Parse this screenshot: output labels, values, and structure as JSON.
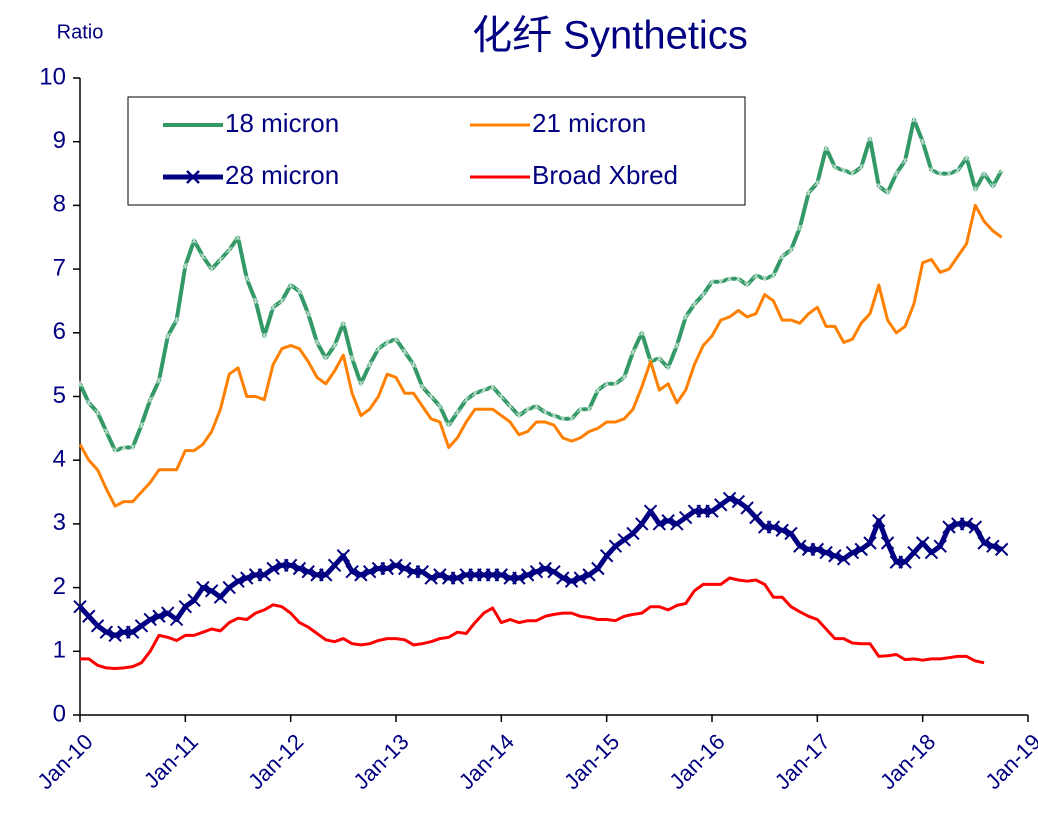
{
  "chart_data": {
    "type": "line",
    "title": "化纤 Synthetics",
    "y_label": "Ratio",
    "x": [
      "2010-01",
      "2010-02",
      "2010-03",
      "2010-04",
      "2010-05",
      "2010-06",
      "2010-07",
      "2010-08",
      "2010-09",
      "2010-10",
      "2010-11",
      "2010-12",
      "2011-01",
      "2011-02",
      "2011-03",
      "2011-04",
      "2011-05",
      "2011-06",
      "2011-07",
      "2011-08",
      "2011-09",
      "2011-10",
      "2011-11",
      "2011-12",
      "2012-01",
      "2012-02",
      "2012-03",
      "2012-04",
      "2012-05",
      "2012-06",
      "2012-07",
      "2012-08",
      "2012-09",
      "2012-10",
      "2012-11",
      "2012-12",
      "2013-01",
      "2013-02",
      "2013-03",
      "2013-04",
      "2013-05",
      "2013-06",
      "2013-07",
      "2013-08",
      "2013-09",
      "2013-10",
      "2013-11",
      "2013-12",
      "2014-01",
      "2014-02",
      "2014-03",
      "2014-04",
      "2014-05",
      "2014-06",
      "2014-07",
      "2014-08",
      "2014-09",
      "2014-10",
      "2014-11",
      "2014-12",
      "2015-01",
      "2015-02",
      "2015-03",
      "2015-04",
      "2015-05",
      "2015-06",
      "2015-07",
      "2015-08",
      "2015-09",
      "2015-10",
      "2015-11",
      "2015-12",
      "2016-01",
      "2016-02",
      "2016-03",
      "2016-04",
      "2016-05",
      "2016-06",
      "2016-07",
      "2016-08",
      "2016-09",
      "2016-10",
      "2016-11",
      "2016-12",
      "2017-01",
      "2017-02",
      "2017-03",
      "2017-04",
      "2017-05",
      "2017-06",
      "2017-07",
      "2017-08",
      "2017-09",
      "2017-10",
      "2017-11",
      "2017-12",
      "2018-01",
      "2018-02",
      "2018-03",
      "2018-04",
      "2018-05",
      "2018-06",
      "2018-07",
      "2018-08",
      "2018-09",
      "2018-10"
    ],
    "series": [
      {
        "name": "18 micron",
        "color": "#339966",
        "marker": "star",
        "values": [
          5.2,
          4.9,
          4.75,
          4.45,
          4.15,
          4.2,
          4.2,
          4.55,
          4.95,
          5.25,
          5.95,
          6.2,
          7.05,
          7.45,
          7.2,
          7.0,
          7.15,
          7.3,
          7.5,
          6.85,
          6.5,
          5.95,
          6.4,
          6.5,
          6.75,
          6.65,
          6.3,
          5.85,
          5.6,
          5.8,
          6.15,
          5.6,
          5.2,
          5.5,
          5.75,
          5.85,
          5.9,
          5.7,
          5.5,
          5.15,
          5.0,
          4.85,
          4.55,
          4.75,
          4.95,
          5.05,
          5.1,
          5.15,
          5.0,
          4.85,
          4.7,
          4.8,
          4.85,
          4.75,
          4.7,
          4.65,
          4.65,
          4.8,
          4.8,
          5.1,
          5.2,
          5.2,
          5.3,
          5.7,
          6.0,
          5.55,
          5.6,
          5.45,
          5.8,
          6.25,
          6.45,
          6.6,
          6.8,
          6.8,
          6.85,
          6.85,
          6.75,
          6.9,
          6.85,
          6.9,
          7.2,
          7.3,
          7.65,
          8.2,
          8.35,
          8.9,
          8.6,
          8.55,
          8.5,
          8.6,
          9.05,
          8.3,
          8.2,
          8.5,
          8.7,
          9.35,
          9.0,
          8.55,
          8.5,
          8.5,
          8.55,
          8.75,
          8.25,
          8.5,
          8.3,
          8.55
        ]
      },
      {
        "name": "21 micron",
        "color": "#ff8000",
        "marker": "none",
        "values": [
          4.25,
          4.0,
          3.85,
          3.55,
          3.28,
          3.35,
          3.35,
          3.5,
          3.65,
          3.85,
          3.85,
          3.85,
          4.15,
          4.15,
          4.25,
          4.45,
          4.8,
          5.35,
          5.45,
          5.0,
          5.0,
          4.95,
          5.5,
          5.75,
          5.8,
          5.75,
          5.55,
          5.3,
          5.2,
          5.4,
          5.65,
          5.05,
          4.7,
          4.8,
          5.0,
          5.35,
          5.3,
          5.05,
          5.05,
          4.85,
          4.65,
          4.6,
          4.2,
          4.35,
          4.6,
          4.8,
          4.8,
          4.8,
          4.7,
          4.6,
          4.4,
          4.45,
          4.6,
          4.6,
          4.55,
          4.35,
          4.3,
          4.35,
          4.45,
          4.5,
          4.6,
          4.6,
          4.65,
          4.8,
          5.15,
          5.55,
          5.1,
          5.2,
          4.9,
          5.1,
          5.5,
          5.8,
          5.95,
          6.2,
          6.25,
          6.35,
          6.25,
          6.3,
          6.6,
          6.5,
          6.2,
          6.2,
          6.15,
          6.3,
          6.4,
          6.1,
          6.1,
          5.85,
          5.9,
          6.15,
          6.3,
          6.75,
          6.2,
          6.0,
          6.1,
          6.45,
          7.1,
          7.15,
          6.95,
          7.0,
          7.2,
          7.4,
          8.0,
          7.75,
          7.6,
          7.5
        ]
      },
      {
        "name": "28 micron",
        "color": "#000080",
        "marker": "cross",
        "values": [
          1.7,
          1.55,
          1.4,
          1.3,
          1.25,
          1.3,
          1.3,
          1.4,
          1.5,
          1.55,
          1.6,
          1.5,
          1.7,
          1.8,
          2.0,
          1.95,
          1.85,
          2.0,
          2.1,
          2.15,
          2.2,
          2.2,
          2.3,
          2.35,
          2.35,
          2.3,
          2.25,
          2.2,
          2.2,
          2.35,
          2.5,
          2.25,
          2.2,
          2.25,
          2.3,
          2.3,
          2.35,
          2.3,
          2.25,
          2.25,
          2.15,
          2.2,
          2.15,
          2.15,
          2.2,
          2.2,
          2.2,
          2.2,
          2.2,
          2.15,
          2.15,
          2.2,
          2.25,
          2.3,
          2.25,
          2.15,
          2.1,
          2.15,
          2.2,
          2.3,
          2.5,
          2.65,
          2.75,
          2.85,
          3.0,
          3.2,
          3.0,
          3.05,
          3.0,
          3.1,
          3.2,
          3.2,
          3.2,
          3.3,
          3.4,
          3.35,
          3.25,
          3.1,
          2.95,
          2.95,
          2.9,
          2.85,
          2.65,
          2.6,
          2.6,
          2.55,
          2.5,
          2.45,
          2.55,
          2.6,
          2.7,
          3.05,
          2.7,
          2.4,
          2.4,
          2.55,
          2.7,
          2.55,
          2.65,
          2.95,
          3.0,
          3.0,
          2.95,
          2.7,
          2.65,
          2.6
        ]
      },
      {
        "name": "Broad Xbred",
        "color": "#ff0000",
        "marker": "none",
        "values": [
          0.88,
          0.88,
          0.78,
          0.74,
          0.73,
          0.74,
          0.76,
          0.82,
          1.0,
          1.25,
          1.22,
          1.17,
          1.25,
          1.25,
          1.3,
          1.35,
          1.32,
          1.45,
          1.52,
          1.5,
          1.6,
          1.65,
          1.73,
          1.7,
          1.6,
          1.45,
          1.38,
          1.28,
          1.18,
          1.15,
          1.2,
          1.12,
          1.1,
          1.12,
          1.17,
          1.2,
          1.2,
          1.18,
          1.1,
          1.12,
          1.15,
          1.2,
          1.22,
          1.3,
          1.28,
          1.45,
          1.6,
          1.68,
          1.45,
          1.5,
          1.45,
          1.48,
          1.48,
          1.55,
          1.58,
          1.6,
          1.6,
          1.55,
          1.53,
          1.5,
          1.5,
          1.48,
          1.55,
          1.58,
          1.6,
          1.7,
          1.7,
          1.65,
          1.72,
          1.75,
          1.95,
          2.05,
          2.05,
          2.05,
          2.15,
          2.12,
          2.1,
          2.12,
          2.05,
          1.85,
          1.85,
          1.7,
          1.62,
          1.55,
          1.5,
          1.35,
          1.2,
          1.2,
          1.13,
          1.12,
          1.12,
          0.92,
          0.93,
          0.95,
          0.87,
          0.88,
          0.86,
          0.88,
          0.88,
          0.9,
          0.92,
          0.92,
          0.85,
          0.82,
          null,
          null
        ]
      }
    ],
    "xlim": [
      "2010-01",
      "2019-01"
    ],
    "xticks": [
      {
        "value": "2010-01",
        "label": "Jan-10"
      },
      {
        "value": "2011-01",
        "label": "Jan-11"
      },
      {
        "value": "2012-01",
        "label": "Jan-12"
      },
      {
        "value": "2013-01",
        "label": "Jan-13"
      },
      {
        "value": "2014-01",
        "label": "Jan-14"
      },
      {
        "value": "2015-01",
        "label": "Jan-15"
      },
      {
        "value": "2016-01",
        "label": "Jan-16"
      },
      {
        "value": "2017-01",
        "label": "Jan-17"
      },
      {
        "value": "2018-01",
        "label": "Jan-18"
      },
      {
        "value": "2019-01",
        "label": "Jan-19"
      }
    ],
    "ylim": [
      0,
      10
    ],
    "yticks": [
      0,
      1,
      2,
      3,
      4,
      5,
      6,
      7,
      8,
      9,
      10
    ],
    "grid": false,
    "legend": "top-left"
  }
}
